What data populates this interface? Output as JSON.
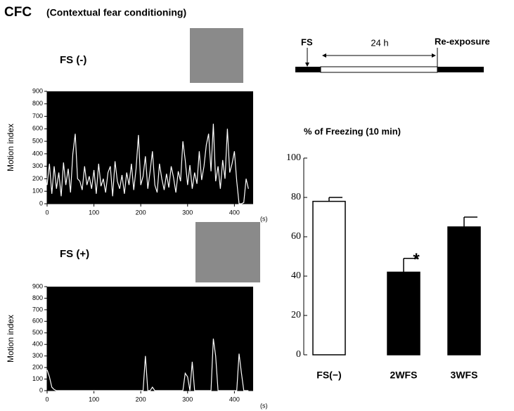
{
  "title": "CFC",
  "subtitle": "(Contextual fear conditioning)",
  "timeline": {
    "start": "FS",
    "interval": "24 h",
    "end": "Re-exposure"
  },
  "chart_data": [
    {
      "type": "line",
      "title": "FS (-)",
      "ylabel": "Motion index",
      "xlabel": "(s)",
      "background": "#000000",
      "xlim": [
        0,
        440
      ],
      "ylim": [
        0,
        900
      ],
      "xticks": [
        0,
        100,
        200,
        300,
        400
      ],
      "yticks": [
        0,
        100,
        200,
        300,
        400,
        500,
        600,
        700,
        800,
        900
      ],
      "x": [
        0,
        5,
        10,
        15,
        20,
        25,
        30,
        35,
        40,
        45,
        50,
        55,
        60,
        65,
        70,
        75,
        80,
        85,
        90,
        95,
        100,
        105,
        110,
        115,
        120,
        125,
        130,
        135,
        140,
        145,
        150,
        155,
        160,
        165,
        170,
        175,
        180,
        185,
        190,
        195,
        200,
        205,
        210,
        215,
        220,
        225,
        230,
        235,
        240,
        245,
        250,
        255,
        260,
        265,
        270,
        275,
        280,
        285,
        290,
        295,
        300,
        305,
        310,
        315,
        320,
        325,
        330,
        335,
        340,
        345,
        350,
        355,
        360,
        365,
        370,
        375,
        380,
        385,
        390,
        395,
        400,
        405,
        410,
        415,
        420,
        425,
        430
      ],
      "series": [
        {
          "color": "#ffffff",
          "values": [
            150,
            320,
            80,
            300,
            120,
            250,
            60,
            330,
            150,
            280,
            90,
            400,
            560,
            200,
            180,
            110,
            300,
            150,
            220,
            120,
            270,
            80,
            320,
            140,
            200,
            90,
            250,
            300,
            60,
            340,
            180,
            120,
            230,
            80,
            250,
            150,
            320,
            110,
            280,
            550,
            150,
            220,
            380,
            120,
            260,
            420,
            150,
            90,
            320,
            200,
            110,
            240,
            130,
            300,
            210,
            90,
            260,
            180,
            500,
            350,
            150,
            310,
            120,
            250,
            160,
            420,
            190,
            300,
            470,
            560,
            260,
            640,
            180,
            300,
            120,
            350,
            200,
            600,
            250,
            320,
            420,
            180,
            0,
            0,
            10,
            200,
            120
          ]
        }
      ]
    },
    {
      "type": "line",
      "title": "FS (+)",
      "ylabel": "Motion index",
      "xlabel": "(s)",
      "background": "#000000",
      "xlim": [
        0,
        440
      ],
      "ylim": [
        0,
        900
      ],
      "xticks": [
        0,
        100,
        200,
        300,
        400
      ],
      "yticks": [
        0,
        100,
        200,
        300,
        400,
        500,
        600,
        700,
        800,
        900
      ],
      "x": [
        0,
        5,
        10,
        15,
        20,
        25,
        30,
        35,
        40,
        45,
        50,
        55,
        60,
        65,
        70,
        75,
        80,
        85,
        90,
        95,
        100,
        105,
        110,
        115,
        120,
        125,
        130,
        135,
        140,
        145,
        150,
        155,
        160,
        165,
        170,
        175,
        180,
        185,
        190,
        195,
        200,
        205,
        210,
        215,
        220,
        225,
        230,
        235,
        240,
        245,
        250,
        255,
        260,
        265,
        270,
        275,
        280,
        285,
        290,
        295,
        300,
        305,
        310,
        315,
        320,
        325,
        330,
        335,
        340,
        345,
        350,
        355,
        360,
        365,
        370,
        375,
        380,
        385,
        390,
        395,
        400,
        405,
        410,
        415,
        420,
        425,
        430
      ],
      "series": [
        {
          "color": "#ffffff",
          "values": [
            180,
            120,
            30,
            10,
            0,
            0,
            0,
            0,
            0,
            0,
            0,
            0,
            0,
            0,
            0,
            0,
            0,
            0,
            0,
            0,
            0,
            0,
            0,
            0,
            0,
            0,
            0,
            0,
            0,
            0,
            0,
            0,
            0,
            0,
            0,
            0,
            0,
            0,
            0,
            0,
            0,
            0,
            300,
            0,
            0,
            30,
            0,
            0,
            0,
            0,
            0,
            0,
            0,
            0,
            0,
            0,
            0,
            0,
            0,
            150,
            120,
            0,
            250,
            0,
            0,
            0,
            0,
            0,
            0,
            0,
            0,
            450,
            300,
            0,
            0,
            0,
            0,
            0,
            0,
            0,
            0,
            0,
            320,
            150,
            0,
            0,
            0
          ]
        }
      ]
    },
    {
      "type": "bar",
      "title": "% of Freezing (10 min)",
      "categories": [
        "FS(−)",
        "2WFS",
        "3WFS"
      ],
      "values": [
        78,
        42,
        65
      ],
      "errors": [
        2,
        7,
        5
      ],
      "colors": [
        "#ffffff",
        "#000000",
        "#000000"
      ],
      "ylim": [
        0,
        100
      ],
      "yticks": [
        0,
        20,
        40,
        60,
        80,
        100
      ],
      "annotation": "*"
    }
  ]
}
